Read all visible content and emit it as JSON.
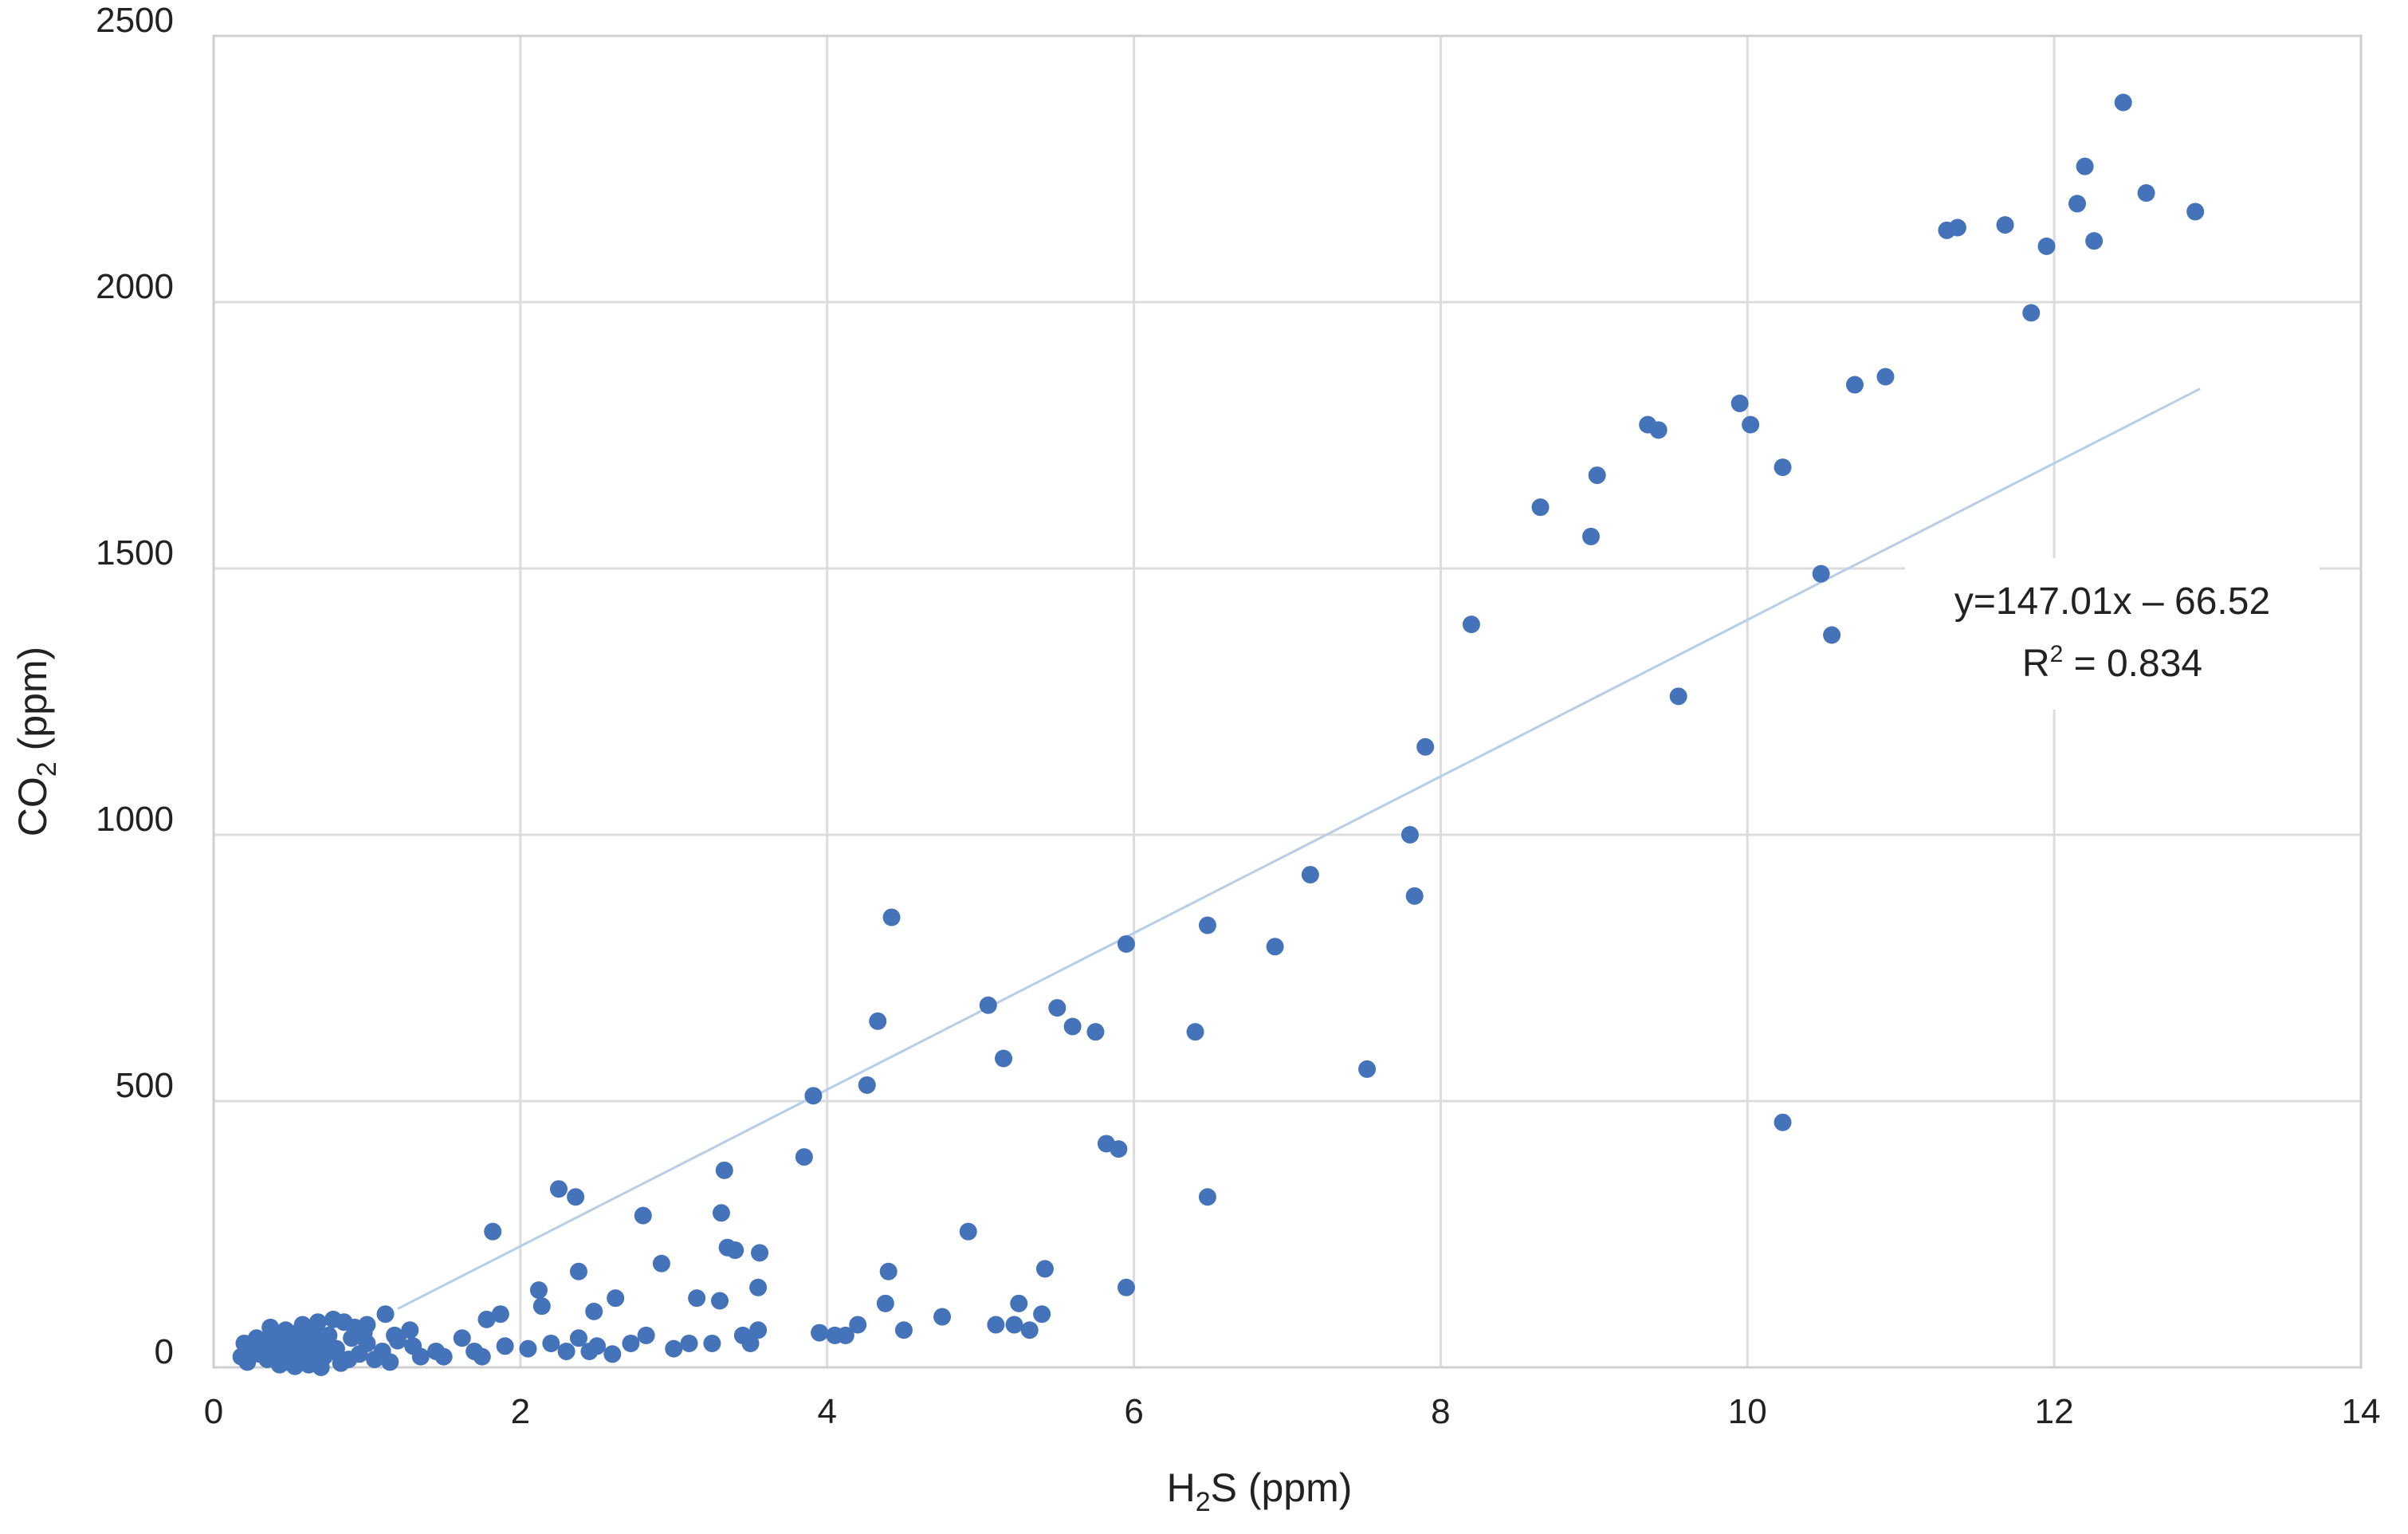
{
  "chart_data": {
    "type": "scatter",
    "xlabel": {
      "main": "H",
      "sub": "2",
      "rest": "S (ppm)"
    },
    "ylabel": {
      "main": "CO",
      "sub": "2",
      "rest": " (ppm)"
    },
    "xlim": [
      0,
      14
    ],
    "ylim": [
      0,
      2500
    ],
    "x_ticks": [
      0,
      2,
      4,
      6,
      8,
      10,
      12,
      14
    ],
    "y_ticks": [
      0,
      500,
      1000,
      1500,
      2000,
      2500
    ],
    "grid": true,
    "colors": {
      "points": "#4473b9",
      "trendline": "#b7cde8",
      "grid": "#dcdcdc"
    },
    "trendline": {
      "slope": 147.01,
      "intercept": -66.52,
      "x_range": [
        1.2,
        12.95
      ],
      "equation": "y=147.01x – 66.52",
      "r2_label": "R",
      "r2_sup": "2",
      "r2_value": " = 0.834"
    },
    "points": [
      [
        12.45,
        2375
      ],
      [
        12.2,
        2255
      ],
      [
        12.6,
        2205
      ],
      [
        12.15,
        2185
      ],
      [
        12.92,
        2170
      ],
      [
        11.3,
        2135
      ],
      [
        11.37,
        2140
      ],
      [
        11.68,
        2145
      ],
      [
        12.26,
        2115
      ],
      [
        11.95,
        2105
      ],
      [
        11.85,
        1980
      ],
      [
        10.7,
        1845
      ],
      [
        10.9,
        1860
      ],
      [
        9.95,
        1810
      ],
      [
        10.02,
        1770
      ],
      [
        9.35,
        1770
      ],
      [
        9.42,
        1760
      ],
      [
        10.23,
        1690
      ],
      [
        9.02,
        1675
      ],
      [
        8.65,
        1615
      ],
      [
        8.98,
        1560
      ],
      [
        10.48,
        1490
      ],
      [
        10.55,
        1375
      ],
      [
        8.2,
        1395
      ],
      [
        9.55,
        1260
      ],
      [
        7.9,
        1165
      ],
      [
        7.8,
        1000
      ],
      [
        7.83,
        885
      ],
      [
        7.15,
        925
      ],
      [
        6.48,
        830
      ],
      [
        6.92,
        790
      ],
      [
        5.95,
        795
      ],
      [
        6.4,
        630
      ],
      [
        5.05,
        680
      ],
      [
        5.5,
        675
      ],
      [
        5.6,
        640
      ],
      [
        5.75,
        630
      ],
      [
        5.15,
        580
      ],
      [
        7.52,
        560
      ],
      [
        4.33,
        650
      ],
      [
        4.42,
        845
      ],
      [
        3.91,
        510
      ],
      [
        4.26,
        530
      ],
      [
        3.85,
        395
      ],
      [
        5.82,
        420
      ],
      [
        5.9,
        410
      ],
      [
        10.23,
        460
      ],
      [
        6.48,
        320
      ],
      [
        2.25,
        335
      ],
      [
        2.36,
        320
      ],
      [
        1.82,
        255
      ],
      [
        3.33,
        370
      ],
      [
        3.31,
        290
      ],
      [
        2.8,
        285
      ],
      [
        4.92,
        255
      ],
      [
        3.35,
        225
      ],
      [
        3.4,
        220
      ],
      [
        3.56,
        215
      ],
      [
        2.92,
        195
      ],
      [
        2.38,
        180
      ],
      [
        4.4,
        180
      ],
      [
        5.42,
        185
      ],
      [
        3.55,
        150
      ],
      [
        5.95,
        150
      ],
      [
        2.12,
        145
      ],
      [
        3.15,
        130
      ],
      [
        3.3,
        125
      ],
      [
        2.62,
        130
      ],
      [
        5.25,
        120
      ],
      [
        4.38,
        120
      ],
      [
        2.14,
        115
      ],
      [
        2.48,
        105
      ],
      [
        5.4,
        100
      ],
      [
        4.75,
        95
      ],
      [
        1.87,
        100
      ],
      [
        1.78,
        90
      ],
      [
        4.2,
        80
      ],
      [
        5.1,
        80
      ],
      [
        5.22,
        80
      ],
      [
        4.5,
        70
      ],
      [
        5.32,
        70
      ],
      [
        3.55,
        70
      ],
      [
        3.95,
        65
      ],
      [
        4.05,
        60
      ],
      [
        4.12,
        60
      ],
      [
        2.82,
        60
      ],
      [
        3.45,
        60
      ],
      [
        2.38,
        55
      ],
      [
        1.62,
        55
      ],
      [
        3.25,
        45
      ],
      [
        2.72,
        45
      ],
      [
        3.1,
        45
      ],
      [
        2.5,
        40
      ],
      [
        2.2,
        45
      ],
      [
        3.5,
        45
      ],
      [
        1.9,
        40
      ],
      [
        2.05,
        35
      ],
      [
        2.3,
        30
      ],
      [
        2.45,
        30
      ],
      [
        2.6,
        25
      ],
      [
        3.0,
        35
      ],
      [
        1.7,
        30
      ],
      [
        1.45,
        30
      ],
      [
        1.5,
        20
      ],
      [
        1.75,
        20
      ],
      [
        1.3,
        40
      ],
      [
        1.35,
        20
      ],
      [
        1.2,
        50
      ],
      [
        1.1,
        30
      ],
      [
        1.0,
        45
      ],
      [
        1.05,
        15
      ],
      [
        0.95,
        25
      ],
      [
        0.9,
        55
      ],
      [
        0.88,
        15
      ],
      [
        0.8,
        35
      ],
      [
        0.75,
        60
      ],
      [
        0.72,
        20
      ],
      [
        0.7,
        45
      ],
      [
        0.66,
        10
      ],
      [
        0.65,
        70
      ],
      [
        0.62,
        30
      ],
      [
        0.6,
        50
      ],
      [
        0.58,
        15
      ],
      [
        0.55,
        65
      ],
      [
        0.52,
        25
      ],
      [
        0.5,
        40
      ],
      [
        0.48,
        10
      ],
      [
        0.45,
        55
      ],
      [
        0.42,
        20
      ],
      [
        0.4,
        35
      ],
      [
        0.38,
        60
      ],
      [
        0.35,
        15
      ],
      [
        0.32,
        45
      ],
      [
        0.3,
        25
      ],
      [
        0.28,
        55
      ],
      [
        0.25,
        30
      ],
      [
        0.22,
        10
      ],
      [
        0.2,
        45
      ],
      [
        0.18,
        20
      ],
      [
        0.58,
        80
      ],
      [
        0.85,
        85
      ],
      [
        0.92,
        75
      ],
      [
        1.12,
        100
      ],
      [
        1.0,
        80
      ],
      [
        1.28,
        70
      ],
      [
        0.78,
        90
      ],
      [
        0.68,
        85
      ],
      [
        0.47,
        70
      ],
      [
        0.37,
        75
      ],
      [
        0.62,
        5
      ],
      [
        0.53,
        2
      ],
      [
        0.43,
        5
      ],
      [
        0.83,
        8
      ],
      [
        0.7,
        0
      ],
      [
        1.15,
        10
      ],
      [
        0.98,
        65
      ],
      [
        1.18,
        60
      ],
      [
        0.55,
        35
      ],
      [
        0.65,
        25
      ],
      [
        0.74,
        50
      ],
      [
        0.44,
        40
      ],
      [
        0.34,
        30
      ],
      [
        0.27,
        40
      ],
      [
        0.57,
        55
      ],
      [
        0.77,
        30
      ]
    ]
  }
}
